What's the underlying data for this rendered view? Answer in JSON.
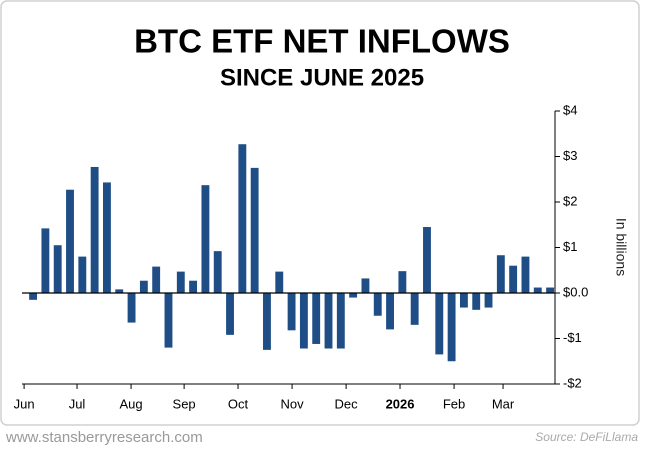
{
  "chart_data": {
    "type": "bar",
    "title": "BTC ETF NET INFLOWS",
    "subtitle": "SINCE JUNE 2025",
    "y_label": "In billions",
    "source": "Source: DeFiLlama",
    "website": "www.stansberryresearch.com",
    "color": "#1f4e86",
    "x": [
      0,
      1,
      2,
      3,
      4,
      5,
      6,
      7,
      8,
      9,
      10,
      11,
      12,
      13,
      14,
      15,
      16,
      17,
      18,
      19,
      20,
      21,
      22,
      23,
      24,
      25,
      26,
      27,
      28,
      29,
      30,
      31,
      32,
      33,
      34,
      35,
      36,
      37,
      38,
      39,
      40,
      41,
      42
    ],
    "values": [
      -0.15,
      1.42,
      1.05,
      2.27,
      0.8,
      2.77,
      2.43,
      0.08,
      -0.65,
      0.27,
      0.58,
      -1.2,
      0.47,
      0.27,
      2.37,
      0.92,
      -0.92,
      3.27,
      2.75,
      -1.25,
      0.47,
      -0.82,
      -1.22,
      -1.12,
      -1.22,
      -1.22,
      -0.1,
      0.32,
      -0.5,
      -0.8,
      0.48,
      -0.7,
      1.45,
      -1.35,
      -1.5,
      -0.32,
      -0.37,
      -0.32,
      0.83,
      0.6,
      0.8,
      0.12,
      0.12
    ],
    "xlim": [
      -0.9,
      42.4
    ],
    "xticks": [
      {
        "value": -0.73,
        "label": "Jun"
      },
      {
        "value": 3.57,
        "label": "Jul"
      },
      {
        "value": 7.96,
        "label": "Aug"
      },
      {
        "value": 12.27,
        "label": "Sep"
      },
      {
        "value": 16.65,
        "label": "Oct"
      },
      {
        "value": 21.04,
        "label": "Nov"
      },
      {
        "value": 25.43,
        "label": "Dec"
      },
      {
        "value": 29.81,
        "label": "2026"
      },
      {
        "value": 34.2,
        "label": "Feb"
      },
      {
        "value": 38.18,
        "label": "Mar"
      }
    ],
    "ylim": [
      -2,
      4
    ],
    "yticks": [
      {
        "value": 4,
        "label": "$4"
      },
      {
        "value": 3,
        "label": "$3"
      },
      {
        "value": 2,
        "label": "$2"
      },
      {
        "value": 1,
        "label": "$1"
      },
      {
        "value": 0,
        "label": "$0.0"
      },
      {
        "value": -1,
        "label": "-$1"
      },
      {
        "value": -2,
        "label": "-$2"
      }
    ]
  }
}
